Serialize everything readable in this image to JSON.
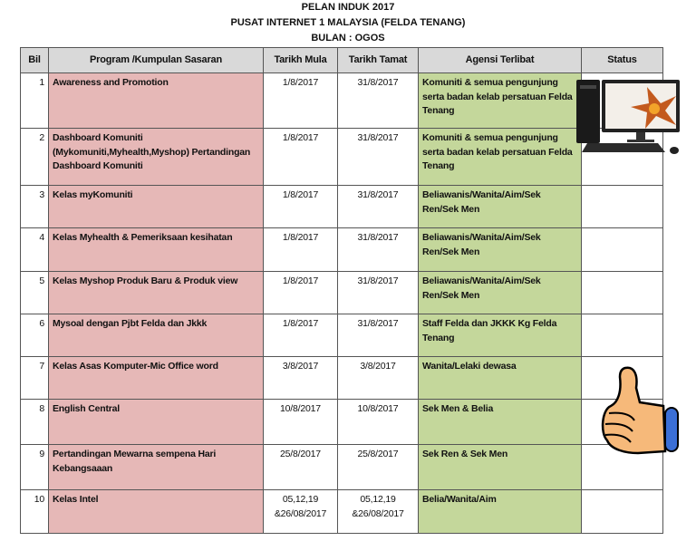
{
  "titles": [
    "PELAN INDUK 2017",
    "PUSAT INTERNET 1 MALAYSIA (FELDA TENANG)",
    "BULAN : OGOS"
  ],
  "columns": [
    "Bil",
    "Program /Kumpulan Sasaran",
    "Tarikh Mula",
    "Tarikh Tamat",
    "Agensi Terlibat",
    "Status"
  ],
  "rows": [
    {
      "bil": "1",
      "program": "Awareness and Promotion",
      "mula": "1/8/2017",
      "tamat": "31/8/2017",
      "agensi": "Komuniti  & semua pengunjung serta badan kelab persatuan Felda Tenang",
      "status": ""
    },
    {
      "bil": "2",
      "program": "Dashboard Komuniti (Mykomuniti,Myhealth,Myshop) Pertandingan Dashboard Komuniti",
      "mula": "1/8/2017",
      "tamat": "31/8/2017",
      "agensi": "Komuniti  & semua pengunjung serta badan kelab persatuan Felda Tenang",
      "status": ""
    },
    {
      "bil": "3",
      "program": "Kelas myKomuniti",
      "mula": "1/8/2017",
      "tamat": "31/8/2017",
      "agensi": "Beliawanis/Wanita/Aim/Sek Ren/Sek Men",
      "status": ""
    },
    {
      "bil": "4",
      "program": "Kelas Myhealth & Pemeriksaan kesihatan",
      "mula": "1/8/2017",
      "tamat": "31/8/2017",
      "agensi": "Beliawanis/Wanita/Aim/Sek Ren/Sek Men",
      "status": ""
    },
    {
      "bil": "5",
      "program": "Kelas Myshop Produk Baru & Produk view",
      "mula": "1/8/2017",
      "tamat": "31/8/2017",
      "agensi": "Beliawanis/Wanita/Aim/Sek Ren/Sek Men",
      "status": ""
    },
    {
      "bil": "6",
      "program": "Mysoal dengan Pjbt Felda dan Jkkk",
      "mula": "1/8/2017",
      "tamat": "31/8/2017",
      "agensi": "Staff Felda dan JKKK Kg Felda Tenang",
      "status": ""
    },
    {
      "bil": "7",
      "program": "Kelas Asas Komputer-Mic Office word",
      "mula": "3/8/2017",
      "tamat": "3/8/2017",
      "agensi": "Wanita/Lelaki dewasa",
      "status": ""
    },
    {
      "bil": "8",
      "program": "English Central",
      "mula": "10/8/2017",
      "tamat": "10/8/2017",
      "agensi": "Sek Men & Belia",
      "status": ""
    },
    {
      "bil": "9",
      "program": "Pertandingan Mewarna sempena Hari Kebangsaaan",
      "mula": "25/8/2017",
      "tamat": "25/8/2017",
      "agensi": "Sek Ren & Sek Men",
      "status": ""
    },
    {
      "bil": "10",
      "program": "Kelas Intel",
      "mula": "05,12,19 &26/08/2017",
      "tamat": "05,12,19 &26/08/2017",
      "agensi": "Belia/Wanita/Aim",
      "status": ""
    }
  ],
  "colors": {
    "program_bg": "#e6b8b7",
    "agensi_bg": "#c4d79b",
    "header_bg": "#d9d9d9"
  },
  "images": [
    "desktop-computer-icon",
    "thumbs-up-icon"
  ]
}
